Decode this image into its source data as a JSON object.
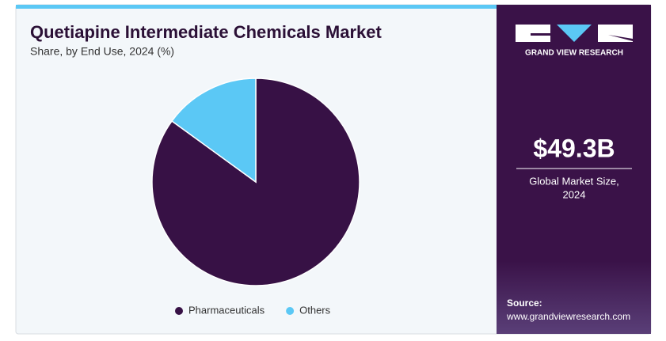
{
  "chart_data": {
    "type": "pie",
    "title": "Quetiapine Intermediate Chemicals Market",
    "subtitle": "Share, by End Use, 2024 (%)",
    "categories": [
      "Pharmaceuticals",
      "Others"
    ],
    "values": [
      85,
      15
    ],
    "colors": [
      "#371145",
      "#5bc8f5"
    ],
    "legend": "bottom"
  },
  "panel": {
    "brand": "GRAND VIEW RESEARCH",
    "market_size": "$49.3B",
    "market_label": [
      "Global Market Size,",
      "2024"
    ],
    "source_label": "Source:",
    "source_url": "www.grandviewresearch.com"
  }
}
